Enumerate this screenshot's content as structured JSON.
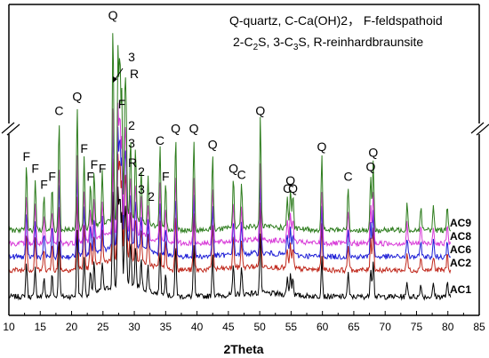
{
  "chart_data": {
    "type": "line",
    "xlabel": "2Theta",
    "xlim": [
      10,
      85
    ],
    "x_ticks": [
      "10",
      "15",
      "20",
      "25",
      "30",
      "35",
      "40",
      "45",
      "50",
      "55",
      "60",
      "65",
      "70",
      "75",
      "80",
      "85"
    ],
    "grid": false,
    "y_axis_break": true,
    "legend_text": {
      "line1": "Q-quartz, C-Ca(OH)2， F-feldspathoid",
      "line2_parts": [
        "2-C",
        "2",
        "S, 3-C",
        "3",
        "S, R-reinhardbraunsite"
      ]
    },
    "series": [
      {
        "name": "AC9",
        "color": "#2e7d1e"
      },
      {
        "name": "AC8",
        "color": "#d83bd8"
      },
      {
        "name": "AC6",
        "color": "#1f1fd6"
      },
      {
        "name": "AC2",
        "color": "#c0281c"
      },
      {
        "name": "AC1",
        "color": "#000000"
      }
    ],
    "peaks": [
      {
        "x": 12.8,
        "rel": 0.32,
        "label": "F"
      },
      {
        "x": 14.2,
        "rel": 0.26,
        "label": "F"
      },
      {
        "x": 15.6,
        "rel": 0.18,
        "label": "F"
      },
      {
        "x": 16.9,
        "rel": 0.22,
        "label": "F"
      },
      {
        "x": 18.0,
        "rel": 0.55,
        "label": "C"
      },
      {
        "x": 20.9,
        "rel": 0.62,
        "label": "Q"
      },
      {
        "x": 22.0,
        "rel": 0.36,
        "label": "F"
      },
      {
        "x": 23.0,
        "rel": 0.22,
        "label": "F"
      },
      {
        "x": 23.6,
        "rel": 0.28,
        "label": "F"
      },
      {
        "x": 24.9,
        "rel": 0.26,
        "label": "F"
      },
      {
        "x": 26.6,
        "rel": 1.0,
        "label": "Q"
      },
      {
        "x": 27.4,
        "rel": 0.85,
        "label": "3"
      },
      {
        "x": 27.7,
        "rel": 0.8,
        "label": "R"
      },
      {
        "x": 28.0,
        "rel": 0.62,
        "label": "F"
      },
      {
        "x": 28.5,
        "rel": 0.55,
        "label": "2"
      },
      {
        "x": 28.7,
        "rel": 0.48,
        "label": "3"
      },
      {
        "x": 29.4,
        "rel": 0.4,
        "label": "R"
      },
      {
        "x": 30.2,
        "rel": 0.36,
        "label": "2"
      },
      {
        "x": 31.1,
        "rel": 0.25,
        "label": "3"
      },
      {
        "x": 32.2,
        "rel": 0.23,
        "label": "2"
      },
      {
        "x": 34.1,
        "rel": 0.4,
        "label": "C"
      },
      {
        "x": 35.0,
        "rel": 0.22,
        "label": "F"
      },
      {
        "x": 36.6,
        "rel": 0.46,
        "label": "Q"
      },
      {
        "x": 39.5,
        "rel": 0.46,
        "label": "Q"
      },
      {
        "x": 42.5,
        "rel": 0.38,
        "label": "Q"
      },
      {
        "x": 45.8,
        "rel": 0.26,
        "label": "Q"
      },
      {
        "x": 47.1,
        "rel": 0.23,
        "label": "C"
      },
      {
        "x": 50.1,
        "rel": 0.55,
        "label": "Q"
      },
      {
        "x": 54.4,
        "rel": 0.16,
        "label": "C"
      },
      {
        "x": 54.9,
        "rel": 0.2,
        "label": "Q"
      },
      {
        "x": 55.3,
        "rel": 0.16,
        "label": "Q"
      },
      {
        "x": 59.9,
        "rel": 0.37,
        "label": "Q"
      },
      {
        "x": 64.1,
        "rel": 0.22,
        "label": "C"
      },
      {
        "x": 67.7,
        "rel": 0.27,
        "label": "Q"
      },
      {
        "x": 68.1,
        "rel": 0.34,
        "label": "Q"
      },
      {
        "x": 73.5,
        "rel": 0.14,
        "label": ""
      },
      {
        "x": 75.7,
        "rel": 0.12,
        "label": ""
      },
      {
        "x": 77.7,
        "rel": 0.12,
        "label": ""
      },
      {
        "x": 79.9,
        "rel": 0.13,
        "label": ""
      }
    ]
  }
}
